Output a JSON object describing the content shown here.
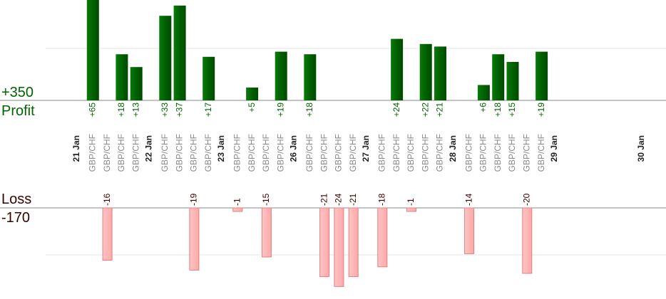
{
  "chart_data": {
    "type": "bar",
    "profit_label": "Profit",
    "profit_max_label": "+350",
    "loss_label": "Loss",
    "loss_max_label": "-170",
    "profit_color": "#006400",
    "loss_color": "#ffb3b3",
    "loss_border": "#e08080",
    "grid": true,
    "date_labels": [
      "21 Jan",
      "22 Jan",
      "23 Jan",
      "26 Jan",
      "27 Jan",
      "28 Jan",
      "29 Jan",
      "30 Jan"
    ],
    "date_slots": [
      0,
      5,
      10,
      15,
      20,
      26,
      33,
      39
    ],
    "trades": [
      {
        "pair": "GBP/CHF",
        "label": "+65",
        "value": 65
      },
      {
        "pair": "GBP/CHF",
        "label": "-16",
        "value": -16
      },
      {
        "pair": "GBP/CHF",
        "label": "+18",
        "value": 18
      },
      {
        "pair": "GBP/CHF",
        "label": "+13",
        "value": 13
      },
      {
        "pair": "GBP/CHF",
        "label": "+33",
        "value": 33
      },
      {
        "pair": "GBP/CHF",
        "label": "+37",
        "value": 37
      },
      {
        "pair": "GBP/CHF",
        "label": "-19",
        "value": -19
      },
      {
        "pair": "GBP/CHF",
        "label": "+17",
        "value": 17
      },
      {
        "pair": "GBP/CHF",
        "label": "-1",
        "value": -1
      },
      {
        "pair": "GBP/CHF",
        "label": "+5",
        "value": 5
      },
      {
        "pair": "GBP/CHF",
        "label": "-15",
        "value": -15
      },
      {
        "pair": "GBP/CHF",
        "label": "+19",
        "value": 19
      },
      {
        "pair": "GBP/CHF",
        "label": "+18",
        "value": 18
      },
      {
        "pair": "GBP/CHF",
        "label": "-21",
        "value": -21
      },
      {
        "pair": "GBP/CHF",
        "label": "-24",
        "value": -24
      },
      {
        "pair": "GBP/CHF",
        "label": "-21",
        "value": -21
      },
      {
        "pair": "GBP/CHF",
        "label": "-18",
        "value": -18
      },
      {
        "pair": "GBP/CHF",
        "label": "+24",
        "value": 24
      },
      {
        "pair": "GBP/CHF",
        "label": "-1",
        "value": -1
      },
      {
        "pair": "GBP/CHF",
        "label": "+22",
        "value": 22
      },
      {
        "pair": "GBP/CHF",
        "label": "+21",
        "value": 21
      },
      {
        "pair": "GBP/CHF",
        "label": "-14",
        "value": -14
      },
      {
        "pair": "GBP/CHF",
        "label": "+6",
        "value": 6
      },
      {
        "pair": "GBP/CHF",
        "label": "+18",
        "value": 18
      },
      {
        "pair": "GBP/CHF",
        "label": "+15",
        "value": 15
      },
      {
        "pair": "GBP/CHF",
        "label": "-20",
        "value": -20
      },
      {
        "pair": "GBP/CHF",
        "label": "+19",
        "value": 19
      }
    ]
  }
}
